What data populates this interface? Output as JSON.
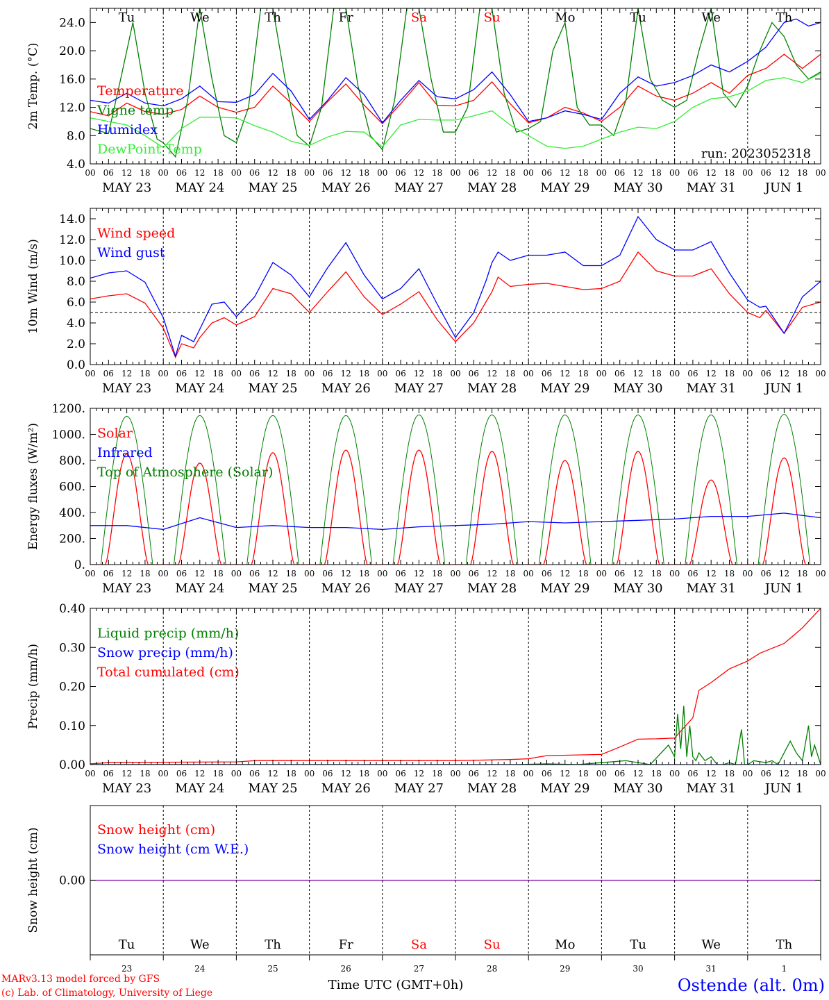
{
  "colors": {
    "red": "#ff0000",
    "blue": "#0000ff",
    "green": "#008000",
    "lightgreen": "#33ee33",
    "purple": "#8000a0",
    "black": "#000000"
  },
  "time_axis": {
    "hour_labels": [
      "00",
      "06",
      "12",
      "18"
    ],
    "date_labels": [
      "MAY 23",
      "MAY 24",
      "MAY 25",
      "MAY 26",
      "MAY 27",
      "MAY 28",
      "MAY 29",
      "MAY 30",
      "MAY 31",
      "JUN  1"
    ],
    "weekday_labels": [
      "Tu",
      "We",
      "Th",
      "Fr",
      "Sa",
      "Su",
      "Mo",
      "Tu",
      "We",
      "Th"
    ],
    "weekday_colors": [
      "black",
      "black",
      "black",
      "black",
      "red",
      "red",
      "black",
      "black",
      "black",
      "black"
    ],
    "day_numbers": [
      "23",
      "24",
      "25",
      "26",
      "27",
      "28",
      "29",
      "30",
      "31",
      "1"
    ],
    "days": 10
  },
  "footer": {
    "model_line": "MARv3.13 model forced by GFS",
    "copyright_line": "(c) Lab. of Climatology, University of Liege",
    "time_label": "Time UTC (GMT+0h)",
    "station": "Ostende (alt. 0m)"
  },
  "chart_data": [
    {
      "id": "temperature",
      "type": "line",
      "ylabel": "2m Temp. (°C)",
      "ylim": [
        4,
        26
      ],
      "yticks": [
        4,
        8,
        12,
        16,
        20,
        24
      ],
      "ytick_labels": [
        "4.0",
        "8.0",
        "12.0",
        "16.0",
        "20.0",
        "24.0"
      ],
      "run_label": "run: 2023052318",
      "x_unit": "hours since MAY 23 00 UTC",
      "legend": [
        {
          "label": "Temperature",
          "color": "red"
        },
        {
          "label": "Vigne temp",
          "color": "green"
        },
        {
          "label": "Humidex",
          "color": "blue"
        },
        {
          "label": "DewPoint Temp",
          "color": "lightgreen"
        }
      ],
      "series": [
        {
          "name": "Temperature",
          "color": "red",
          "x": [
            0,
            6,
            12,
            18,
            24,
            30,
            36,
            42,
            48,
            54,
            60,
            66,
            72,
            78,
            84,
            90,
            96,
            102,
            108,
            114,
            120,
            126,
            132,
            138,
            144,
            150,
            156,
            162,
            168,
            174,
            180,
            186,
            192,
            198,
            204,
            210,
            216,
            222,
            228,
            234,
            240
          ],
          "y": [
            11.4,
            10.8,
            12.6,
            11.4,
            11.0,
            11.7,
            13.6,
            12.0,
            11.3,
            12.0,
            15.0,
            12.6,
            10.0,
            12.8,
            15.3,
            12.3,
            9.7,
            12.5,
            15.5,
            12.3,
            12.2,
            13.0,
            15.6,
            12.5,
            9.8,
            10.5,
            12.0,
            11.2,
            10.0,
            12.0,
            15.0,
            13.6,
            13.0,
            14.0,
            15.5,
            14.0,
            16.5,
            17.5,
            19.5,
            17.5,
            19.5
          ]
        },
        {
          "name": "Vigne temp",
          "color": "green",
          "x": [
            0,
            6,
            10,
            14,
            18,
            22,
            24,
            28,
            32,
            36,
            40,
            44,
            48,
            52,
            56,
            60,
            64,
            68,
            72,
            76,
            80,
            84,
            88,
            92,
            96,
            100,
            104,
            108,
            112,
            116,
            120,
            124,
            128,
            132,
            136,
            140,
            144,
            148,
            152,
            156,
            160,
            164,
            168,
            172,
            176,
            180,
            184,
            188,
            192,
            196,
            200,
            204,
            208,
            212,
            216,
            220,
            224,
            228,
            232,
            236,
            240
          ],
          "y": [
            9.0,
            8.3,
            16,
            24,
            14,
            7.5,
            7.0,
            5.0,
            13,
            26,
            16,
            8.0,
            7.0,
            12,
            26,
            26,
            16,
            8,
            6.5,
            12,
            26,
            26,
            15,
            8,
            6.0,
            13,
            26,
            26,
            16,
            8.5,
            8.5,
            12,
            26,
            26,
            14,
            8.5,
            9.0,
            10,
            20,
            24,
            12,
            9.5,
            9.5,
            8,
            13,
            26,
            16,
            13,
            12,
            13,
            20,
            26,
            14,
            12,
            15,
            20,
            24,
            22,
            18,
            16,
            17
          ]
        },
        {
          "name": "Humidex",
          "color": "blue",
          "x": [
            0,
            6,
            12,
            18,
            24,
            30,
            36,
            42,
            48,
            54,
            60,
            66,
            72,
            78,
            84,
            90,
            96,
            102,
            108,
            114,
            120,
            126,
            132,
            138,
            144,
            150,
            156,
            162,
            168,
            174,
            180,
            186,
            192,
            198,
            204,
            210,
            216,
            222,
            228,
            232,
            236,
            240
          ],
          "y": [
            13.0,
            12.6,
            14.0,
            12.6,
            12.2,
            13.2,
            15.0,
            12.8,
            12.7,
            13.8,
            16.8,
            14.3,
            10.3,
            13.0,
            16.2,
            13.8,
            9.8,
            13.0,
            15.8,
            13.5,
            13.2,
            14.5,
            17.0,
            13.8,
            10.0,
            10.5,
            11.5,
            11.0,
            10.3,
            14.0,
            16.3,
            15.0,
            15.5,
            16.5,
            18.0,
            17.0,
            18.5,
            20.5,
            24.0,
            24.5,
            23.5,
            24.0
          ]
        },
        {
          "name": "DewPoint Temp",
          "color": "lightgreen",
          "x": [
            0,
            6,
            12,
            18,
            24,
            30,
            36,
            42,
            48,
            54,
            60,
            66,
            72,
            78,
            84,
            90,
            96,
            102,
            108,
            114,
            120,
            126,
            132,
            138,
            144,
            150,
            156,
            162,
            168,
            174,
            180,
            186,
            192,
            198,
            204,
            210,
            216,
            222,
            228,
            234,
            240
          ],
          "y": [
            10.5,
            10.0,
            9.5,
            8.0,
            6.3,
            9.0,
            10.6,
            10.6,
            10.5,
            9.4,
            8.5,
            7.2,
            6.6,
            7.8,
            8.6,
            8.5,
            6.4,
            9.5,
            10.3,
            10.2,
            10.2,
            10.8,
            11.5,
            9.5,
            8.0,
            6.5,
            6.2,
            6.5,
            7.5,
            8.5,
            9.2,
            9.0,
            10.0,
            12.0,
            13.2,
            13.5,
            14.3,
            15.8,
            16.2,
            15.5,
            16.8
          ]
        }
      ]
    },
    {
      "id": "wind",
      "type": "line",
      "ylabel": "10m Wind (m/s)",
      "ylim": [
        0,
        15
      ],
      "yticks": [
        0,
        2,
        4,
        6,
        8,
        10,
        12,
        14
      ],
      "ytick_labels": [
        "0.0",
        "2.0",
        "4.0",
        "6.0",
        "8.0",
        "10.0",
        "12.0",
        "14.0"
      ],
      "reference_line": 5,
      "legend": [
        {
          "label": "Wind speed",
          "color": "red"
        },
        {
          "label": "Wind gust",
          "color": "blue"
        }
      ],
      "series": [
        {
          "name": "Wind speed",
          "color": "red",
          "x": [
            0,
            6,
            12,
            18,
            24,
            28,
            30,
            34,
            36,
            40,
            44,
            48,
            54,
            60,
            66,
            72,
            78,
            84,
            90,
            96,
            102,
            108,
            114,
            120,
            126,
            130,
            132,
            134,
            138,
            144,
            150,
            156,
            162,
            168,
            174,
            180,
            186,
            192,
            198,
            204,
            210,
            216,
            220,
            222,
            228,
            234,
            240
          ],
          "y": [
            6.3,
            6.6,
            6.8,
            5.9,
            3.5,
            0.7,
            2.0,
            1.6,
            2.6,
            4.0,
            4.5,
            3.8,
            4.6,
            7.3,
            6.8,
            5.0,
            7.0,
            8.9,
            6.5,
            4.8,
            5.8,
            7.0,
            4.3,
            2.2,
            4.0,
            6.0,
            7.0,
            8.4,
            7.5,
            7.7,
            7.8,
            7.5,
            7.2,
            7.3,
            8.0,
            10.8,
            9.0,
            8.5,
            8.5,
            9.2,
            6.8,
            5.0,
            4.5,
            5.2,
            3.0,
            5.5,
            6.0
          ]
        },
        {
          "name": "Wind gust",
          "color": "blue",
          "x": [
            0,
            6,
            12,
            18,
            24,
            28,
            30,
            34,
            36,
            40,
            44,
            48,
            54,
            60,
            66,
            72,
            78,
            84,
            90,
            96,
            102,
            108,
            114,
            120,
            126,
            130,
            132,
            134,
            138,
            144,
            150,
            156,
            162,
            168,
            174,
            180,
            186,
            192,
            198,
            204,
            210,
            216,
            220,
            222,
            228,
            234,
            240
          ],
          "y": [
            8.3,
            8.8,
            9.0,
            7.9,
            4.5,
            0.8,
            2.8,
            2.2,
            3.4,
            5.8,
            6.0,
            4.6,
            6.5,
            9.8,
            8.6,
            6.5,
            9.3,
            11.7,
            8.6,
            6.3,
            7.3,
            9.2,
            5.8,
            2.6,
            5.0,
            8.0,
            9.8,
            10.8,
            10.0,
            10.5,
            10.5,
            10.8,
            9.5,
            9.5,
            10.5,
            14.2,
            12.0,
            11.0,
            11.0,
            11.8,
            8.8,
            6.2,
            5.5,
            5.6,
            3.0,
            6.5,
            8.0
          ]
        }
      ]
    },
    {
      "id": "energy",
      "type": "line",
      "ylabel": "Energy fluxes (W/m²)",
      "ylim": [
        0,
        1200
      ],
      "yticks": [
        0,
        200,
        400,
        600,
        800,
        1000,
        1200
      ],
      "ytick_labels": [
        "0.",
        "200.",
        "400.",
        "600.",
        "800.",
        "1000.",
        "1200."
      ],
      "legend": [
        {
          "label": "Solar",
          "color": "red"
        },
        {
          "label": "Infrared",
          "color": "blue"
        },
        {
          "label": "Top of Atmosphere (Solar)",
          "color": "green"
        }
      ],
      "day_peaks": {
        "solar": [
          850,
          780,
          860,
          880,
          880,
          870,
          800,
          870,
          650,
          820
        ],
        "toa": [
          1140,
          1145,
          1145,
          1145,
          1150,
          1150,
          1150,
          1150,
          1150,
          1155
        ]
      },
      "series": [
        {
          "name": "Infrared",
          "color": "blue",
          "x": [
            0,
            12,
            24,
            36,
            48,
            60,
            72,
            84,
            96,
            108,
            120,
            132,
            144,
            156,
            168,
            180,
            192,
            204,
            216,
            228,
            240
          ],
          "y": [
            300,
            300,
            270,
            360,
            285,
            300,
            285,
            285,
            270,
            290,
            300,
            310,
            330,
            320,
            330,
            340,
            350,
            370,
            370,
            395,
            360
          ]
        }
      ]
    },
    {
      "id": "precip",
      "type": "line",
      "ylabel": "Precip (mm/h)",
      "ylim": [
        0,
        0.4
      ],
      "yticks": [
        0,
        0.1,
        0.2,
        0.3,
        0.4
      ],
      "ytick_labels": [
        "0.00",
        "0.10",
        "0.20",
        "0.30",
        "0.40"
      ],
      "legend": [
        {
          "label": "Liquid precip (mm/h)",
          "color": "green"
        },
        {
          "label": "Snow precip (mm/h)",
          "color": "blue"
        },
        {
          "label": "Total cumulated (cm)",
          "color": "red"
        }
      ],
      "series": [
        {
          "name": "Total cumulated",
          "color": "red",
          "x": [
            0,
            6,
            24,
            48,
            54,
            96,
            120,
            138,
            144,
            150,
            168,
            174,
            180,
            186,
            192,
            198,
            200,
            204,
            210,
            216,
            220,
            228,
            234,
            240
          ],
          "y": [
            0.002,
            0.005,
            0.006,
            0.007,
            0.01,
            0.01,
            0.01,
            0.013,
            0.015,
            0.023,
            0.026,
            0.045,
            0.065,
            0.066,
            0.068,
            0.12,
            0.19,
            0.21,
            0.245,
            0.265,
            0.285,
            0.31,
            0.35,
            0.4
          ]
        },
        {
          "name": "Liquid precip",
          "color": "green",
          "x": [
            0,
            140,
            150,
            160,
            168,
            176,
            184,
            190,
            192,
            193,
            194,
            195,
            196,
            197,
            198,
            199,
            200,
            202,
            204,
            206,
            208,
            210,
            212,
            214,
            215,
            216,
            218,
            222,
            224,
            226,
            228,
            230,
            232,
            234,
            236,
            237,
            238,
            240
          ],
          "y": [
            0,
            0,
            0.002,
            0,
            0.005,
            0.01,
            0,
            0.05,
            0.02,
            0.13,
            0.04,
            0.15,
            0.02,
            0.1,
            0.02,
            0.01,
            0.03,
            0.01,
            0.02,
            0.0,
            0.0,
            0.005,
            0.0,
            0.09,
            0.0,
            0.0,
            0.01,
            0.005,
            0.01,
            0.0,
            0.03,
            0.06,
            0.03,
            0.01,
            0.1,
            0.02,
            0.05,
            0.0
          ]
        },
        {
          "name": "Snow precip",
          "color": "blue",
          "x": [
            0,
            240
          ],
          "y": [
            0,
            0
          ]
        }
      ]
    },
    {
      "id": "snow",
      "type": "line",
      "ylabel": "Snow height (cm)",
      "ylim": [
        -1,
        1
      ],
      "yticks": [
        0
      ],
      "ytick_labels": [
        "0.00"
      ],
      "legend": [
        {
          "label": "Snow height (cm)",
          "color": "red"
        },
        {
          "label": "Snow height (cm W.E.)",
          "color": "blue"
        }
      ],
      "series": [
        {
          "name": "Snow height",
          "color": "purple",
          "x": [
            0,
            240
          ],
          "y": [
            0,
            0
          ]
        }
      ]
    }
  ]
}
